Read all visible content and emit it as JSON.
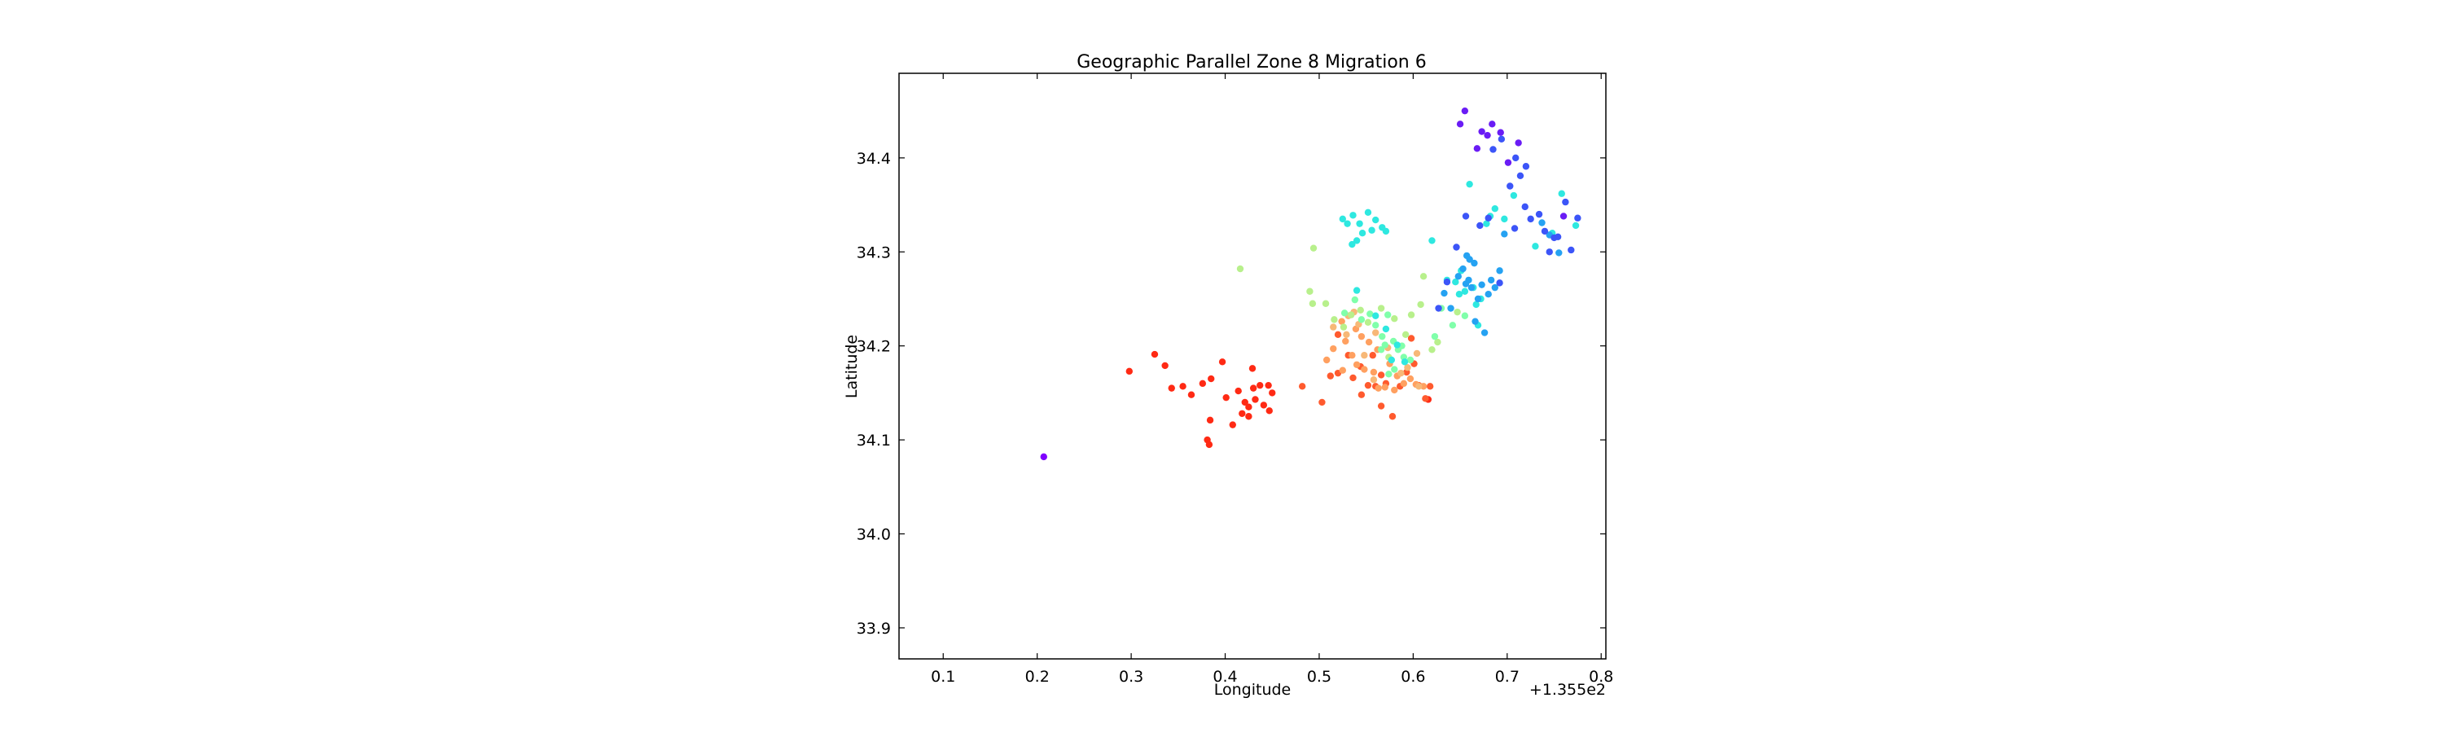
{
  "chart_data": {
    "type": "scatter",
    "title": "Geographic Parallel Zone 8 Migration 6",
    "xlabel": "Longitude",
    "ylabel": "Latitude",
    "x_offset_label": "+1.355e2",
    "xlim": [
      0.053,
      0.805
    ],
    "ylim": [
      33.867,
      34.49
    ],
    "xticks": [
      0.1,
      0.2,
      0.3,
      0.4,
      0.5,
      0.6,
      0.7,
      0.8
    ],
    "xtick_labels": [
      "0.1",
      "0.2",
      "0.3",
      "0.4",
      "0.5",
      "0.6",
      "0.7",
      "0.8"
    ],
    "yticks": [
      33.9,
      34.0,
      34.1,
      34.2,
      34.3,
      34.4
    ],
    "ytick_labels": [
      "33.9",
      "34.0",
      "34.1",
      "34.2",
      "34.3",
      "34.4"
    ],
    "grid": false,
    "legend": "none",
    "colormap": "rainbow",
    "colors": {
      "red": "#ff2a14",
      "red_orange": "#ff5a2e",
      "orange": "#ffa060",
      "light_orange": "#f7b877",
      "light_green": "#b8f08c",
      "green": "#80ffaa",
      "cyan": "#2ee8e0",
      "azure": "#25a2f2",
      "blue": "#3c55f8",
      "violet": "#6a1cf5",
      "purple": "#7f00ff"
    },
    "series": [
      {
        "color_key": "red",
        "points": [
          [
            0.298,
            34.173
          ],
          [
            0.325,
            34.191
          ],
          [
            0.336,
            34.179
          ],
          [
            0.343,
            34.155
          ],
          [
            0.355,
            34.157
          ],
          [
            0.364,
            34.148
          ],
          [
            0.376,
            34.16
          ],
          [
            0.385,
            34.165
          ],
          [
            0.397,
            34.183
          ],
          [
            0.401,
            34.145
          ],
          [
            0.408,
            34.116
          ],
          [
            0.418,
            34.128
          ],
          [
            0.425,
            34.135
          ],
          [
            0.429,
            34.176
          ],
          [
            0.43,
            34.155
          ],
          [
            0.437,
            34.158
          ],
          [
            0.441,
            34.137
          ],
          [
            0.446,
            34.158
          ],
          [
            0.45,
            34.15
          ],
          [
            0.447,
            34.131
          ],
          [
            0.421,
            34.14
          ],
          [
            0.384,
            34.121
          ],
          [
            0.381,
            34.1
          ],
          [
            0.383,
            34.095
          ],
          [
            0.425,
            34.125
          ],
          [
            0.414,
            34.152
          ],
          [
            0.432,
            34.143
          ],
          [
            0.616,
            34.143
          ]
        ]
      },
      {
        "color_key": "red_orange",
        "points": [
          [
            0.482,
            34.157
          ],
          [
            0.503,
            34.14
          ],
          [
            0.512,
            34.168
          ],
          [
            0.52,
            34.171
          ],
          [
            0.536,
            34.166
          ],
          [
            0.545,
            34.148
          ],
          [
            0.552,
            34.158
          ],
          [
            0.56,
            34.157
          ],
          [
            0.566,
            34.136
          ],
          [
            0.571,
            34.16
          ],
          [
            0.578,
            34.125
          ],
          [
            0.586,
            34.157
          ],
          [
            0.593,
            34.172
          ],
          [
            0.601,
            34.181
          ],
          [
            0.606,
            34.158
          ],
          [
            0.613,
            34.144
          ],
          [
            0.618,
            34.157
          ],
          [
            0.557,
            34.19
          ],
          [
            0.566,
            34.169
          ],
          [
            0.52,
            34.212
          ],
          [
            0.531,
            34.19
          ],
          [
            0.598,
            34.208
          ],
          [
            0.544,
            34.178
          ]
        ]
      },
      {
        "color_key": "orange",
        "points": [
          [
            0.508,
            34.185
          ],
          [
            0.515,
            34.197
          ],
          [
            0.525,
            34.174
          ],
          [
            0.528,
            34.205
          ],
          [
            0.535,
            34.19
          ],
          [
            0.54,
            34.18
          ],
          [
            0.548,
            34.175
          ],
          [
            0.553,
            34.204
          ],
          [
            0.558,
            34.172
          ],
          [
            0.563,
            34.155
          ],
          [
            0.57,
            34.156
          ],
          [
            0.575,
            34.181
          ],
          [
            0.583,
            34.168
          ],
          [
            0.59,
            34.16
          ],
          [
            0.597,
            34.165
          ],
          [
            0.603,
            34.159
          ],
          [
            0.611,
            34.157
          ],
          [
            0.539,
            34.218
          ],
          [
            0.524,
            34.226
          ],
          [
            0.545,
            34.21
          ],
          [
            0.58,
            34.153
          ],
          [
            0.562,
            34.196
          ]
        ]
      },
      {
        "color_key": "light_orange",
        "points": [
          [
            0.515,
            34.22
          ],
          [
            0.531,
            34.232
          ],
          [
            0.542,
            34.223
          ],
          [
            0.548,
            34.19
          ],
          [
            0.56,
            34.214
          ],
          [
            0.573,
            34.198
          ],
          [
            0.587,
            34.171
          ],
          [
            0.594,
            34.177
          ],
          [
            0.604,
            34.192
          ],
          [
            0.606,
            34.157
          ],
          [
            0.558,
            34.164
          ],
          [
            0.537,
            34.236
          ],
          [
            0.529,
            34.212
          ]
        ]
      },
      {
        "color_key": "light_green",
        "points": [
          [
            0.416,
            34.282
          ],
          [
            0.494,
            34.304
          ],
          [
            0.49,
            34.258
          ],
          [
            0.493,
            34.245
          ],
          [
            0.507,
            34.245
          ],
          [
            0.516,
            34.228
          ],
          [
            0.526,
            34.22
          ],
          [
            0.534,
            34.233
          ],
          [
            0.544,
            34.238
          ],
          [
            0.552,
            34.225
          ],
          [
            0.566,
            34.24
          ],
          [
            0.58,
            34.229
          ],
          [
            0.598,
            34.233
          ],
          [
            0.608,
            34.244
          ],
          [
            0.62,
            34.196
          ],
          [
            0.626,
            34.204
          ],
          [
            0.611,
            34.274
          ],
          [
            0.647,
            34.236
          ],
          [
            0.574,
            34.188
          ],
          [
            0.592,
            34.212
          ]
        ]
      },
      {
        "color_key": "green",
        "points": [
          [
            0.527,
            34.235
          ],
          [
            0.538,
            34.249
          ],
          [
            0.545,
            34.228
          ],
          [
            0.554,
            34.234
          ],
          [
            0.56,
            34.222
          ],
          [
            0.567,
            34.21
          ],
          [
            0.573,
            34.233
          ],
          [
            0.579,
            34.205
          ],
          [
            0.584,
            34.196
          ],
          [
            0.59,
            34.188
          ],
          [
            0.597,
            34.185
          ],
          [
            0.574,
            34.17
          ],
          [
            0.588,
            34.2
          ],
          [
            0.566,
            34.196
          ],
          [
            0.623,
            34.21
          ],
          [
            0.63,
            34.24
          ],
          [
            0.642,
            34.222
          ],
          [
            0.655,
            34.232
          ],
          [
            0.58,
            34.175
          ],
          [
            0.57,
            34.201
          ]
        ]
      },
      {
        "color_key": "cyan",
        "points": [
          [
            0.525,
            34.335
          ],
          [
            0.53,
            34.33
          ],
          [
            0.536,
            34.339
          ],
          [
            0.54,
            34.312
          ],
          [
            0.543,
            34.33
          ],
          [
            0.546,
            34.32
          ],
          [
            0.552,
            34.342
          ],
          [
            0.556,
            34.323
          ],
          [
            0.56,
            34.334
          ],
          [
            0.567,
            34.326
          ],
          [
            0.571,
            34.322
          ],
          [
            0.535,
            34.308
          ],
          [
            0.54,
            34.259
          ],
          [
            0.56,
            34.232
          ],
          [
            0.571,
            34.218
          ],
          [
            0.583,
            34.201
          ],
          [
            0.577,
            34.185
          ],
          [
            0.591,
            34.183
          ],
          [
            0.62,
            34.312
          ],
          [
            0.636,
            34.27
          ],
          [
            0.645,
            34.268
          ],
          [
            0.651,
            34.28
          ],
          [
            0.655,
            34.258
          ],
          [
            0.66,
            34.372
          ],
          [
            0.664,
            34.262
          ],
          [
            0.669,
            34.222
          ],
          [
            0.672,
            34.25
          ],
          [
            0.678,
            34.33
          ],
          [
            0.682,
            34.338
          ],
          [
            0.687,
            34.346
          ],
          [
            0.697,
            34.335
          ],
          [
            0.707,
            34.36
          ],
          [
            0.73,
            34.306
          ],
          [
            0.748,
            34.32
          ],
          [
            0.758,
            34.362
          ],
          [
            0.773,
            34.328
          ],
          [
            0.649,
            34.255
          ],
          [
            0.667,
            34.244
          ]
        ]
      },
      {
        "color_key": "azure",
        "points": [
          [
            0.633,
            34.256
          ],
          [
            0.64,
            34.24
          ],
          [
            0.648,
            34.274
          ],
          [
            0.653,
            34.282
          ],
          [
            0.657,
            34.296
          ],
          [
            0.659,
            34.27
          ],
          [
            0.662,
            34.262
          ],
          [
            0.665,
            34.288
          ],
          [
            0.669,
            34.25
          ],
          [
            0.673,
            34.265
          ],
          [
            0.676,
            34.214
          ],
          [
            0.68,
            34.255
          ],
          [
            0.683,
            34.27
          ],
          [
            0.687,
            34.262
          ],
          [
            0.692,
            34.28
          ],
          [
            0.66,
            34.292
          ],
          [
            0.666,
            34.226
          ],
          [
            0.656,
            34.266
          ],
          [
            0.697,
            34.319
          ],
          [
            0.737,
            34.331
          ],
          [
            0.745,
            34.318
          ],
          [
            0.755,
            34.299
          ]
        ]
      },
      {
        "color_key": "blue",
        "points": [
          [
            0.646,
            34.305
          ],
          [
            0.656,
            34.338
          ],
          [
            0.671,
            34.328
          ],
          [
            0.68,
            34.336
          ],
          [
            0.692,
            34.267
          ],
          [
            0.703,
            34.37
          ],
          [
            0.708,
            34.325
          ],
          [
            0.719,
            34.348
          ],
          [
            0.725,
            34.335
          ],
          [
            0.734,
            34.34
          ],
          [
            0.74,
            34.322
          ],
          [
            0.745,
            34.3
          ],
          [
            0.75,
            34.315
          ],
          [
            0.754,
            34.316
          ],
          [
            0.762,
            34.353
          ],
          [
            0.768,
            34.302
          ],
          [
            0.775,
            34.336
          ],
          [
            0.709,
            34.4
          ],
          [
            0.714,
            34.381
          ],
          [
            0.72,
            34.391
          ],
          [
            0.685,
            34.409
          ],
          [
            0.694,
            34.42
          ],
          [
            0.636,
            34.268
          ],
          [
            0.627,
            34.24
          ]
        ]
      },
      {
        "color_key": "violet",
        "points": [
          [
            0.655,
            34.45
          ],
          [
            0.668,
            34.41
          ],
          [
            0.673,
            34.428
          ],
          [
            0.679,
            34.424
          ],
          [
            0.684,
            34.436
          ],
          [
            0.693,
            34.427
          ],
          [
            0.701,
            34.395
          ],
          [
            0.712,
            34.416
          ],
          [
            0.65,
            34.436
          ],
          [
            0.76,
            34.338
          ]
        ]
      },
      {
        "color_key": "purple",
        "points": [
          [
            0.207,
            34.082
          ]
        ]
      }
    ]
  }
}
